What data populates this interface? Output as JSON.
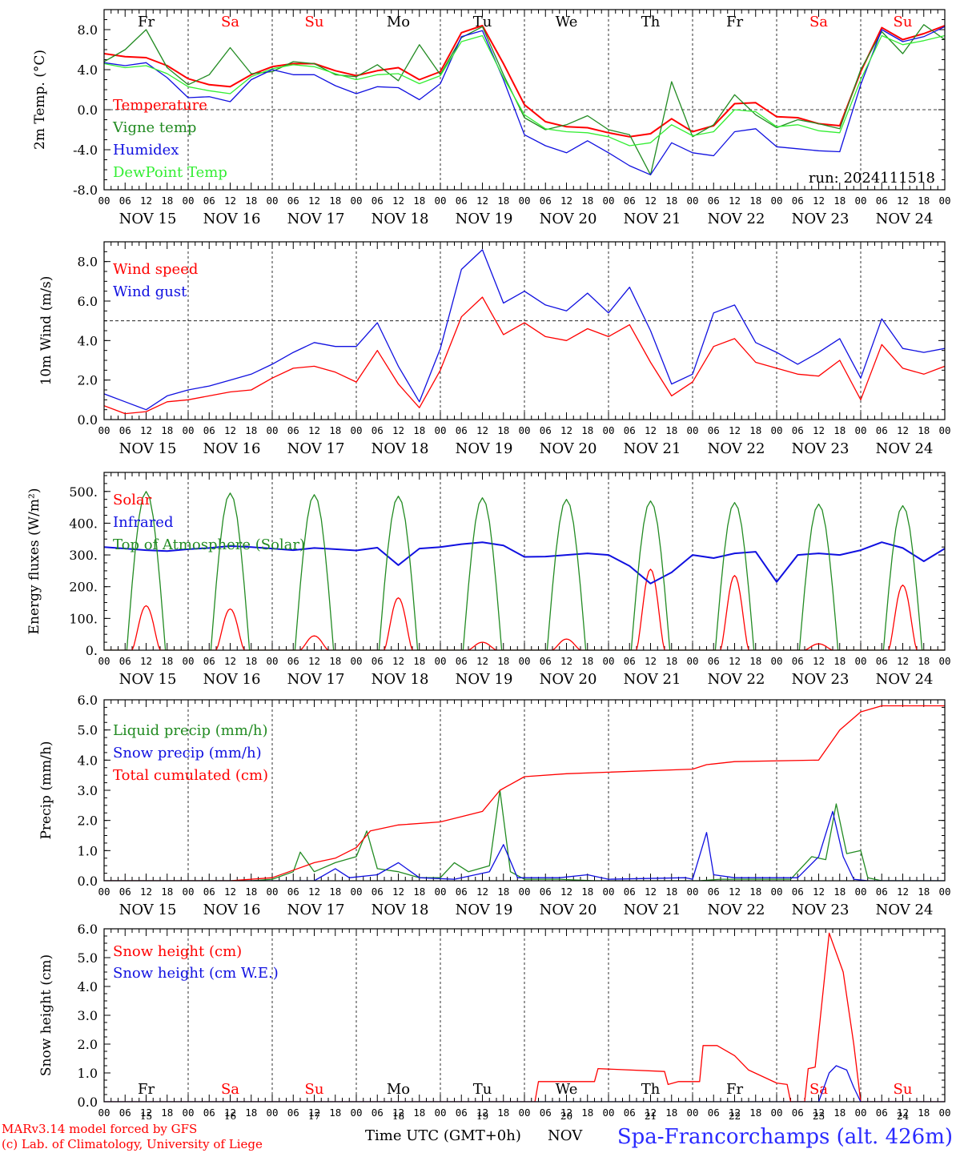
{
  "colors": {
    "red": "#ff0000",
    "green": "#228b22",
    "blue": "#1010e0",
    "lightgreen": "#33ee33",
    "darkgreen": "#228b22",
    "station": "#2a2aff"
  },
  "day_of_week": [
    "Fr",
    "Sa",
    "Su",
    "Mo",
    "Tu",
    "We",
    "Th",
    "Fr",
    "Sa",
    "Su"
  ],
  "weekend_days": [
    "Sa",
    "Su"
  ],
  "date_labels": [
    "NOV 15",
    "NOV 16",
    "NOV 17",
    "NOV 18",
    "NOV 19",
    "NOV 20",
    "NOV 21",
    "NOV 22",
    "NOV 23",
    "NOV 24"
  ],
  "hour_labels": [
    "00",
    "06",
    "12",
    "18"
  ],
  "final_hour_label": "00",
  "day_numbers": [
    "15",
    "16",
    "17",
    "18",
    "19",
    "20",
    "21",
    "22",
    "23",
    "24"
  ],
  "run_label": "run: 2024111518",
  "footer": {
    "model_line": "MARv3.14 model forced by GFS",
    "copyright_line": "(c) Lab. of Climatology, University of Liege",
    "x_axis_label": "Time UTC (GMT+0h)",
    "month_label": "NOV",
    "station": "Spa-Francorchamps (alt. 426m)"
  },
  "chart_data": [
    {
      "type": "line",
      "ylabel": "2m Temp. (°C)",
      "ylim": [
        -8,
        10
      ],
      "yticks": [
        "-8.0",
        "-4.0",
        "0.0",
        "4.0",
        "8.0"
      ],
      "ytick_values": [
        -8,
        -4,
        0,
        4,
        8
      ],
      "reference_line": 0,
      "grid": "vertical day separators (dashed)",
      "legend_placement": "inside left",
      "x_hours": [
        0,
        6,
        12,
        18,
        24,
        30,
        36,
        42,
        48,
        54,
        60,
        66,
        72,
        78,
        84,
        90,
        96,
        102,
        108,
        114,
        120,
        126,
        132,
        138,
        144,
        150,
        156,
        162,
        168,
        174,
        180,
        186,
        192,
        198,
        204,
        210,
        216,
        222,
        228,
        234,
        240
      ],
      "series": [
        {
          "name": "Temperature",
          "color": "red",
          "values": [
            5.6,
            5.3,
            5.2,
            4.4,
            3.1,
            2.5,
            2.3,
            3.5,
            4.3,
            4.6,
            4.6,
            3.9,
            3.4,
            3.9,
            4.2,
            3.0,
            3.8,
            7.7,
            8.4,
            4.6,
            0.5,
            -1.2,
            -1.7,
            -1.8,
            -2.3,
            -2.7,
            -2.4,
            -0.9,
            -2.2,
            -1.6,
            0.6,
            0.7,
            -0.7,
            -0.8,
            -1.4,
            -1.6,
            3.8,
            8.2,
            7.0,
            7.6,
            8.4
          ]
        },
        {
          "name": "Vigne temp",
          "color": "green",
          "values": [
            4.8,
            6.0,
            8.0,
            4.2,
            2.5,
            3.5,
            6.2,
            3.6,
            3.8,
            4.8,
            4.6,
            3.5,
            3.3,
            4.5,
            2.9,
            6.5,
            3.5,
            7.2,
            8.3,
            3.5,
            -0.8,
            -2.0,
            -1.5,
            -0.6,
            -2.0,
            -2.5,
            -6.5,
            2.8,
            -2.7,
            -1.5,
            1.5,
            -0.5,
            -1.8,
            -1.0,
            -1.4,
            -1.9,
            4.0,
            7.8,
            5.6,
            8.5,
            7.0
          ]
        },
        {
          "name": "Humidex",
          "color": "blue",
          "values": [
            4.7,
            4.4,
            4.7,
            3.2,
            1.2,
            1.3,
            0.8,
            3.0,
            4.0,
            3.5,
            3.5,
            2.4,
            1.6,
            2.3,
            2.2,
            1.0,
            2.6,
            7.3,
            7.9,
            3.0,
            -2.5,
            -3.6,
            -4.3,
            -3.1,
            -4.3,
            -5.6,
            -6.5,
            -3.3,
            -4.3,
            -4.6,
            -2.2,
            -1.9,
            -3.7,
            -3.9,
            -4.1,
            -4.2,
            2.5,
            8.0,
            6.8,
            7.3,
            8.3
          ]
        },
        {
          "name": "DewPoint Temp",
          "color": "lightgreen",
          "values": [
            4.6,
            4.2,
            4.4,
            3.6,
            2.3,
            1.9,
            1.6,
            3.3,
            4.1,
            4.5,
            4.3,
            3.6,
            3.0,
            3.5,
            3.6,
            2.6,
            3.4,
            6.8,
            7.4,
            3.2,
            -0.5,
            -1.9,
            -2.2,
            -2.3,
            -2.7,
            -3.6,
            -3.3,
            -1.5,
            -2.6,
            -2.2,
            0.0,
            -0.2,
            -1.7,
            -1.5,
            -2.1,
            -2.3,
            3.0,
            7.4,
            6.5,
            6.9,
            7.4
          ]
        }
      ]
    },
    {
      "type": "line",
      "ylabel": "10m Wind (m/s)",
      "ylim": [
        0,
        9
      ],
      "yticks": [
        "0.0",
        "2.0",
        "4.0",
        "6.0",
        "8.0"
      ],
      "ytick_values": [
        0,
        2,
        4,
        6,
        8
      ],
      "reference_line": 5,
      "grid": "vertical day separators (dashed)",
      "legend_placement": "inside left",
      "x_hours": [
        0,
        6,
        12,
        18,
        24,
        30,
        36,
        42,
        48,
        54,
        60,
        66,
        72,
        78,
        84,
        90,
        96,
        102,
        108,
        114,
        120,
        126,
        132,
        138,
        144,
        150,
        156,
        162,
        168,
        174,
        180,
        186,
        192,
        198,
        204,
        210,
        216,
        222,
        228,
        234,
        240
      ],
      "series": [
        {
          "name": "Wind speed",
          "color": "red",
          "values": [
            0.7,
            0.3,
            0.4,
            0.9,
            1.0,
            1.2,
            1.4,
            1.5,
            2.1,
            2.6,
            2.7,
            2.4,
            1.9,
            3.5,
            1.8,
            0.6,
            2.5,
            5.2,
            6.2,
            4.3,
            4.9,
            4.2,
            4.0,
            4.6,
            4.2,
            4.8,
            2.9,
            1.2,
            1.9,
            3.7,
            4.1,
            2.9,
            2.6,
            2.3,
            2.2,
            3.0,
            1.0,
            3.8,
            2.6,
            2.3,
            2.7
          ]
        },
        {
          "name": "Wind gust",
          "color": "blue",
          "values": [
            1.3,
            0.9,
            0.5,
            1.2,
            1.5,
            1.7,
            2.0,
            2.3,
            2.8,
            3.4,
            3.9,
            3.7,
            3.7,
            4.9,
            2.7,
            0.9,
            3.6,
            7.6,
            8.6,
            5.9,
            6.5,
            5.8,
            5.5,
            6.4,
            5.4,
            6.7,
            4.5,
            1.8,
            2.3,
            5.4,
            5.8,
            3.9,
            3.4,
            2.8,
            3.4,
            4.1,
            2.1,
            5.1,
            3.6,
            3.4,
            3.6
          ]
        }
      ]
    },
    {
      "type": "line",
      "ylabel": "Energy fluxes (W/m²)",
      "ylim": [
        0,
        560
      ],
      "yticks": [
        "0.",
        "100.",
        "200.",
        "300.",
        "400.",
        "500."
      ],
      "ytick_values": [
        0,
        100,
        200,
        300,
        400,
        500
      ],
      "grid": "vertical day separators (dashed)",
      "legend_placement": "inside left",
      "series": [
        {
          "name": "Solar",
          "color": "red",
          "daily_peaks": [
            140,
            130,
            45,
            165,
            25,
            35,
            255,
            235,
            20,
            205
          ]
        },
        {
          "name": "Infrared",
          "color": "blue",
          "x_hours": [
            0,
            6,
            12,
            18,
            24,
            30,
            36,
            42,
            48,
            54,
            60,
            66,
            72,
            78,
            84,
            90,
            96,
            102,
            108,
            114,
            120,
            126,
            132,
            138,
            144,
            150,
            156,
            162,
            168,
            174,
            180,
            186,
            192,
            198,
            204,
            210,
            216,
            222,
            228,
            234,
            240
          ],
          "values": [
            325,
            320,
            315,
            312,
            318,
            322,
            328,
            325,
            320,
            315,
            322,
            318,
            314,
            323,
            268,
            320,
            325,
            334,
            340,
            330,
            294,
            295,
            300,
            305,
            300,
            265,
            210,
            245,
            300,
            290,
            305,
            310,
            215,
            300,
            305,
            300,
            315,
            340,
            322,
            280,
            320
          ]
        },
        {
          "name": "Top of Atmosphere (Solar)",
          "color": "green",
          "daily_peaks": [
            500,
            495,
            490,
            485,
            480,
            475,
            470,
            465,
            460,
            455
          ]
        }
      ]
    },
    {
      "type": "line",
      "ylabel": "Precip (mm/h)",
      "ylim": [
        0,
        6
      ],
      "yticks": [
        "0.0",
        "1.0",
        "2.0",
        "3.0",
        "4.0",
        "5.0",
        "6.0"
      ],
      "ytick_values": [
        0,
        1,
        2,
        3,
        4,
        5,
        6
      ],
      "grid": "vertical day separators (dashed)",
      "legend_placement": "inside left",
      "series": [
        {
          "name": "Liquid precip (mm/h)",
          "color": "green",
          "points": [
            [
              0,
              0
            ],
            [
              42,
              0
            ],
            [
              48,
              0.05
            ],
            [
              54,
              0.3
            ],
            [
              56,
              0.95
            ],
            [
              60,
              0.3
            ],
            [
              66,
              0.6
            ],
            [
              72,
              0.8
            ],
            [
              75,
              1.65
            ],
            [
              78,
              0.4
            ],
            [
              84,
              0.3
            ],
            [
              90,
              0.1
            ],
            [
              96,
              0.1
            ],
            [
              100,
              0.6
            ],
            [
              104,
              0.3
            ],
            [
              110,
              0.5
            ],
            [
              113,
              3.0
            ],
            [
              116,
              0.3
            ],
            [
              120,
              0.05
            ],
            [
              130,
              0.05
            ],
            [
              140,
              0
            ],
            [
              170,
              0
            ],
            [
              176,
              0.05
            ],
            [
              182,
              0.05
            ],
            [
              196,
              0.05
            ],
            [
              202,
              0.8
            ],
            [
              206,
              0.7
            ],
            [
              209,
              2.55
            ],
            [
              212,
              0.9
            ],
            [
              216,
              1.0
            ],
            [
              218,
              0.1
            ],
            [
              222,
              0
            ],
            [
              240,
              0
            ]
          ]
        },
        {
          "name": "Snow precip (mm/h)",
          "color": "blue",
          "points": [
            [
              0,
              0
            ],
            [
              60,
              0
            ],
            [
              66,
              0.4
            ],
            [
              70,
              0.1
            ],
            [
              78,
              0.2
            ],
            [
              84,
              0.6
            ],
            [
              90,
              0.1
            ],
            [
              100,
              0.05
            ],
            [
              110,
              0.3
            ],
            [
              114,
              1.2
            ],
            [
              118,
              0.1
            ],
            [
              130,
              0.1
            ],
            [
              138,
              0.2
            ],
            [
              144,
              0.05
            ],
            [
              166,
              0.1
            ],
            [
              168,
              0.05
            ],
            [
              172,
              1.6
            ],
            [
              174,
              0.2
            ],
            [
              180,
              0.1
            ],
            [
              198,
              0.1
            ],
            [
              204,
              0.8
            ],
            [
              208,
              2.3
            ],
            [
              211,
              0.8
            ],
            [
              214,
              0.05
            ],
            [
              218,
              0
            ],
            [
              240,
              0
            ]
          ]
        },
        {
          "name": "Total cumulated (cm)",
          "color": "red",
          "points": [
            [
              0,
              0
            ],
            [
              36,
              0
            ],
            [
              48,
              0.1
            ],
            [
              54,
              0.35
            ],
            [
              60,
              0.6
            ],
            [
              66,
              0.75
            ],
            [
              72,
              1.1
            ],
            [
              76,
              1.65
            ],
            [
              84,
              1.85
            ],
            [
              96,
              1.95
            ],
            [
              108,
              2.3
            ],
            [
              113,
              3.0
            ],
            [
              120,
              3.45
            ],
            [
              132,
              3.55
            ],
            [
              144,
              3.6
            ],
            [
              168,
              3.7
            ],
            [
              172,
              3.85
            ],
            [
              180,
              3.95
            ],
            [
              204,
              4.0
            ],
            [
              210,
              5.0
            ],
            [
              216,
              5.6
            ],
            [
              222,
              5.8
            ],
            [
              240,
              5.8
            ]
          ]
        }
      ]
    },
    {
      "type": "line",
      "ylabel": "Snow height (cm)",
      "ylim": [
        0,
        6
      ],
      "yticks": [
        "0.0",
        "1.0",
        "2.0",
        "3.0",
        "4.0",
        "5.0",
        "6.0"
      ],
      "ytick_values": [
        0,
        1,
        2,
        3,
        4,
        5,
        6
      ],
      "grid": "vertical day separators (dashed)",
      "legend_placement": "inside left",
      "series": [
        {
          "name": "Snow height (cm)",
          "color": "red",
          "points": [
            [
              0,
              0
            ],
            [
              123,
              0
            ],
            [
              124,
              0.7
            ],
            [
              140,
              0.7
            ],
            [
              141,
              1.15
            ],
            [
              160,
              1.05
            ],
            [
              161,
              0.6
            ],
            [
              164,
              0.7
            ],
            [
              170,
              0.7
            ],
            [
              171,
              1.95
            ],
            [
              175,
              1.95
            ],
            [
              180,
              1.6
            ],
            [
              184,
              1.1
            ],
            [
              192,
              0.65
            ],
            [
              195,
              0.6
            ],
            [
              196,
              0
            ],
            [
              200,
              0
            ],
            [
              201,
              1.15
            ],
            [
              203,
              1.2
            ],
            [
              207,
              5.85
            ],
            [
              211,
              4.5
            ],
            [
              214,
              2.0
            ],
            [
              216,
              0
            ],
            [
              240,
              0
            ]
          ]
        },
        {
          "name": "Snow height (cm W.E.)",
          "color": "blue",
          "points": [
            [
              0,
              0
            ],
            [
              204,
              0
            ],
            [
              207,
              1.0
            ],
            [
              209,
              1.25
            ],
            [
              212,
              1.1
            ],
            [
              214,
              0.5
            ],
            [
              216,
              0
            ],
            [
              240,
              0
            ]
          ]
        }
      ]
    }
  ]
}
